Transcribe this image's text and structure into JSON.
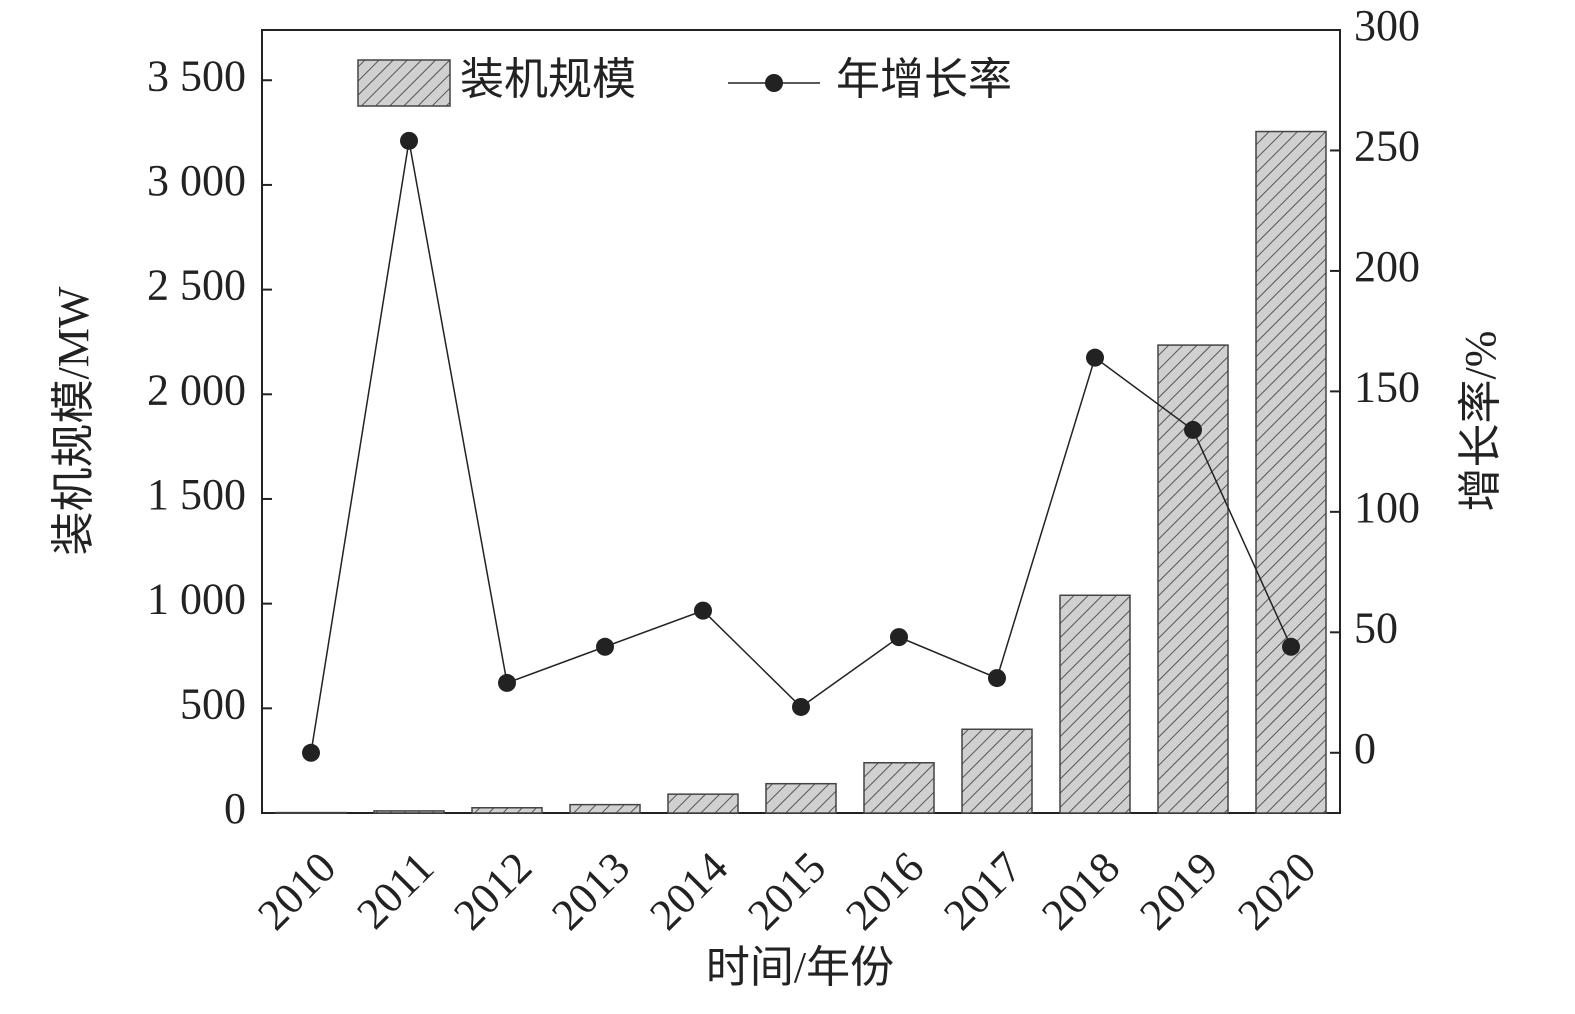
{
  "chart_data": {
    "type": "bar-line",
    "x_label": "时间/年份",
    "y_label": "装机规模/MW",
    "y2_label": "增长率/%",
    "categories": [
      "2010",
      "2011",
      "2012",
      "2013",
      "2014",
      "2015",
      "2016",
      "2017",
      "2018",
      "2019",
      "2020"
    ],
    "series": [
      {
        "name": "装机规模",
        "type": "bar",
        "color": "#c8c8c8",
        "values": [
          2,
          10,
          25,
          40,
          90,
          140,
          240,
          400,
          1040,
          2235,
          3255
        ]
      },
      {
        "name": "年增长率",
        "type": "line",
        "axis": "y2",
        "color": "#222222",
        "values": [
          0,
          254,
          29,
          44,
          59,
          19,
          48,
          31,
          164,
          134,
          44
        ]
      }
    ],
    "ylim": [
      0,
      3740
    ],
    "yticks": [
      0,
      500,
      {
        "value": 1000,
        "label": "1 000"
      },
      {
        "value": 1500,
        "label": "1 500"
      },
      {
        "value": 2000,
        "label": "2 000"
      },
      {
        "value": 2500,
        "label": "2 500"
      },
      {
        "value": 3000,
        "label": "3 000"
      },
      {
        "value": 3500,
        "label": "3 500"
      }
    ],
    "y2lim": [
      -25,
      300
    ],
    "y2ticks": [
      0,
      50,
      100,
      150,
      200,
      250,
      300
    ],
    "legend": "top-left"
  }
}
